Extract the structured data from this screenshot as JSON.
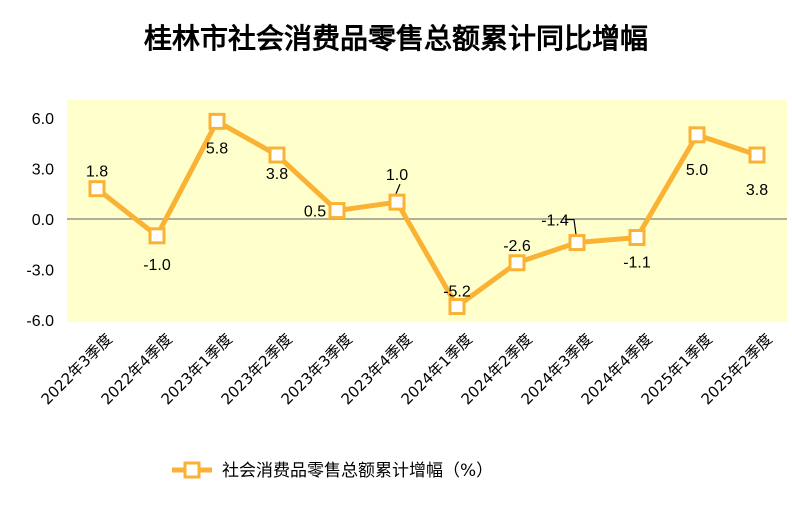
{
  "colors": {
    "series": "#F9B233",
    "plot_bg": "#FFFFCC",
    "zero_line": "#7F7F7F"
  },
  "chart_data": {
    "type": "line",
    "title": "桂林市社会消费品零售总额累计同比增幅",
    "categories": [
      "2022年3季度",
      "2022年4季度",
      "2023年1季度",
      "2023年2季度",
      "2023年3季度",
      "2023年4季度",
      "2024年1季度",
      "2024年2季度",
      "2024年3季度",
      "2024年4季度",
      "2025年1季度",
      "2025年2季度"
    ],
    "series": [
      {
        "name": "社会消费品零售总额累计增幅（%）",
        "values": [
          1.8,
          -1.0,
          5.8,
          3.8,
          0.5,
          1.0,
          -5.2,
          -2.6,
          -1.4,
          -1.1,
          5.0,
          3.8
        ],
        "labels": [
          "1.8",
          "-1.0",
          "5.8",
          "3.8",
          "0.5",
          "1.0",
          "-5.2",
          "-2.6",
          "-1.4",
          "-1.1",
          "5.0",
          "3.8"
        ]
      }
    ],
    "ylim": [
      -6.0,
      6.0
    ],
    "yticks": [
      "6.0",
      "3.0",
      "0.0",
      "-3.0",
      "-6.0"
    ],
    "xlabel": "",
    "ylabel": "",
    "legend_position": "bottom"
  }
}
